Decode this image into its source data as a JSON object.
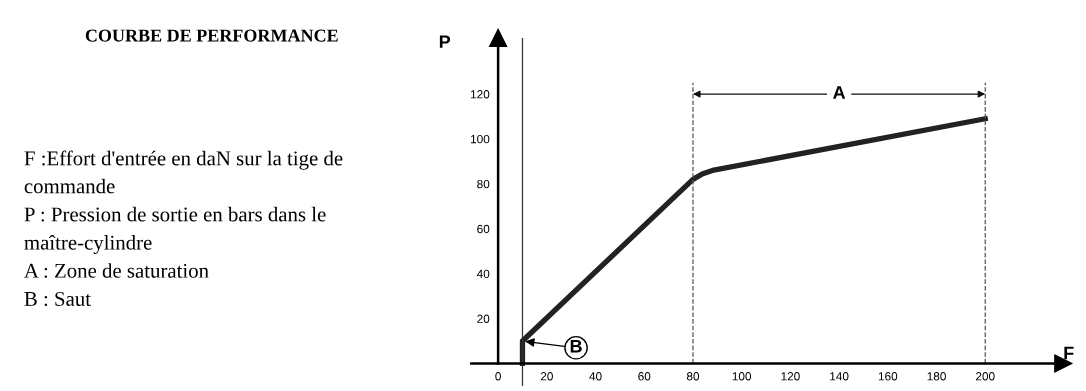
{
  "chart_data": {
    "type": "line",
    "title": "COURBE DE PERFORMANCE",
    "xlabel": "F",
    "ylabel": "P",
    "x": [
      10,
      10,
      80,
      84,
      88,
      200
    ],
    "series": [
      {
        "color": "#222222",
        "values": [
          0,
          10,
          82,
          84.5,
          86,
          109
        ]
      }
    ],
    "xlim": [
      -11,
      232
    ],
    "ylim": [
      -10,
      145
    ],
    "xticks": [
      0,
      20,
      40,
      60,
      80,
      100,
      120,
      140,
      160,
      180,
      200
    ],
    "yticks": [
      20,
      40,
      60,
      80,
      100,
      120
    ],
    "grid": false,
    "marker": "none",
    "line_style": "solid",
    "ref_lines": [
      {
        "axis": "x",
        "value": 10,
        "color": "#333333",
        "line_style": "solid"
      },
      {
        "axis": "x",
        "value": 80,
        "color": "#555555",
        "line_style": "dashed"
      },
      {
        "axis": "x",
        "value": 200,
        "color": "#555555",
        "line_style": "dashed"
      }
    ],
    "annotations": [
      {
        "text": "A",
        "x": 140,
        "y": 120
      },
      {
        "text": "B",
        "x": 10,
        "y": 10
      },
      "F :Effort d'entrée en daN sur la tige de",
      "commande",
      "P : Pression de sortie en bars dans le",
      "maître-cylindre",
      "A : Zone de saturation",
      "B : Saut"
    ]
  }
}
